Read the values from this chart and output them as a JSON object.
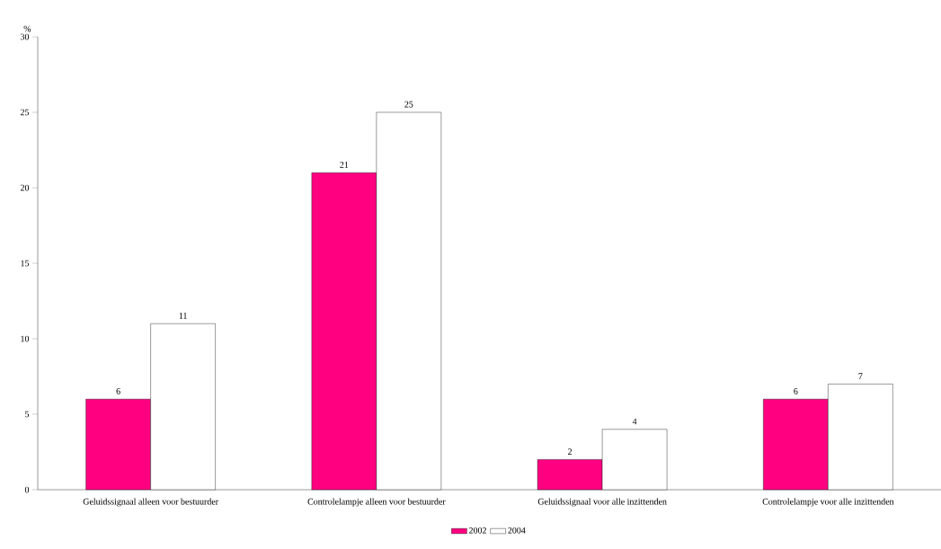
{
  "chart_data": {
    "type": "bar",
    "ylabel": "%",
    "categories": [
      "Geluidssignaal alleen voor bestuurder",
      "Controlelampje alleen voor bestuurder",
      "Geluidssignaal voor alle inzittenden",
      "Controlelampje voor alle inzittenden"
    ],
    "series": [
      {
        "name": "2002",
        "color": "#ff0080",
        "values": [
          6,
          21,
          2,
          6
        ]
      },
      {
        "name": "2004",
        "color": "#ffffff",
        "values": [
          11,
          25,
          4,
          7
        ]
      }
    ],
    "ylim": [
      0,
      30
    ],
    "yticks": [
      0,
      5,
      10,
      15,
      20,
      25,
      30
    ],
    "grid": false,
    "legend": "bottom",
    "data_labels": true
  }
}
